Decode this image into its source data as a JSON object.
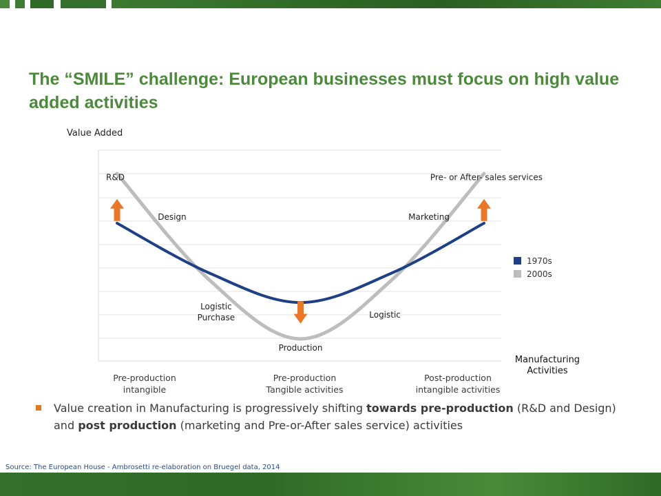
{
  "slide": {
    "title": "The “SMILE” challenge: European businesses must focus on high value added activities",
    "bullet": {
      "p1": "Value creation in Manufacturing is progressively shifting ",
      "b1": "towards pre-production",
      "p2": " (R&D and Design) and ",
      "b2": "post production",
      "p3": " (marketing and Pre-or-After sales service) activities"
    },
    "source": "Source: The European House - Ambrosetti re-elaboration on Bruegel data, 2014"
  },
  "colors": {
    "series_1970s": "#1f3f87",
    "series_2000s": "#bdbdbd",
    "arrow": "#e8772a",
    "title": "#4c8a3b"
  },
  "chart_data": {
    "type": "line",
    "ylabel": "Value Added",
    "xlabel": [
      "Manufacturing",
      "Activities"
    ],
    "grid": true,
    "legend": "right",
    "x": [
      0,
      0.25,
      0.5,
      0.75,
      1
    ],
    "ylim": [
      0,
      1
    ],
    "categories": [
      {
        "x": 0.0,
        "lines": [
          "Pre-production",
          "intangible"
        ]
      },
      {
        "x": 0.5,
        "lines": [
          "Pre-production",
          "Tangible activities"
        ]
      },
      {
        "x": 1.0,
        "lines": [
          "Post-production",
          "intangible activities"
        ]
      }
    ],
    "series": [
      {
        "name": "1970s",
        "color": "#1f3f87",
        "values": [
          0.7,
          0.4,
          0.22,
          0.4,
          0.7
        ]
      },
      {
        "name": "2000s",
        "color": "#bdbdbd",
        "values": [
          1.0,
          0.36,
          0.0,
          0.36,
          1.0
        ]
      }
    ],
    "annotations": [
      {
        "text": "R&D",
        "x": 0.0,
        "y": 0.96
      },
      {
        "text": "Pre- or After- sales services",
        "x": 1.0,
        "y": 0.96
      },
      {
        "text": "Design",
        "x": 0.15,
        "y": 0.72
      },
      {
        "text": "Marketing",
        "x": 0.85,
        "y": 0.72
      },
      {
        "text": [
          "Logistic",
          "Purchase"
        ],
        "x": 0.27,
        "y": 0.18
      },
      {
        "text": "Logistic",
        "x": 0.73,
        "y": 0.13
      },
      {
        "text": "Production",
        "x": 0.5,
        "y": -0.07
      }
    ],
    "arrows": [
      {
        "direction": "up",
        "x": 0.0,
        "y": 0.78
      },
      {
        "direction": "up",
        "x": 1.0,
        "y": 0.78
      },
      {
        "direction": "down",
        "x": 0.5,
        "y": 0.16
      }
    ]
  }
}
